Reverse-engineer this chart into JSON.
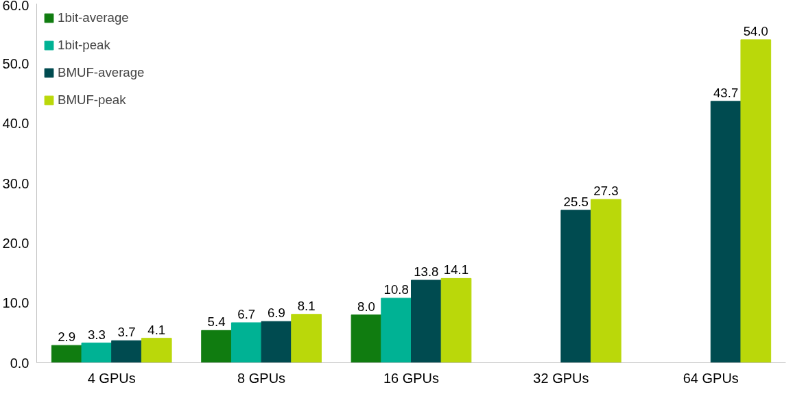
{
  "chart_data": {
    "type": "bar",
    "categories": [
      "4 GPUs",
      "8 GPUs",
      "16 GPUs",
      "32 GPUs",
      "64 GPUs"
    ],
    "series": [
      {
        "name": "1bit-average",
        "color": "#107c10",
        "values": [
          2.9,
          5.4,
          8.0,
          null,
          null
        ],
        "value_labels": [
          "2.9",
          "5.4",
          "8.0",
          null,
          null
        ]
      },
      {
        "name": "1bit-peak",
        "color": "#00b294",
        "values": [
          3.3,
          6.7,
          10.8,
          null,
          null
        ],
        "value_labels": [
          "3.3",
          "6.7",
          "10.8",
          null,
          null
        ]
      },
      {
        "name": "BMUF-average",
        "color": "#004b50",
        "values": [
          3.7,
          6.9,
          13.8,
          25.5,
          43.7
        ],
        "value_labels": [
          "3.7",
          "6.9",
          "13.8",
          "25.5",
          "43.7"
        ]
      },
      {
        "name": "BMUF-peak",
        "color": "#bad80a",
        "values": [
          4.1,
          8.1,
          14.1,
          27.3,
          54.0
        ],
        "value_labels": [
          "4.1",
          "8.1",
          "14.1",
          "27.3",
          "54.0"
        ]
      }
    ],
    "ylim": [
      0,
      60
    ],
    "yticks": [
      {
        "value": 0,
        "label": "0.0"
      },
      {
        "value": 10,
        "label": "10.0"
      },
      {
        "value": 20,
        "label": "20.0"
      },
      {
        "value": 30,
        "label": "30.0"
      },
      {
        "value": 40,
        "label": "40.0"
      },
      {
        "value": 50,
        "label": "50.0"
      },
      {
        "value": 60,
        "label": "60.0"
      }
    ],
    "grid": false,
    "legend": "top left"
  }
}
